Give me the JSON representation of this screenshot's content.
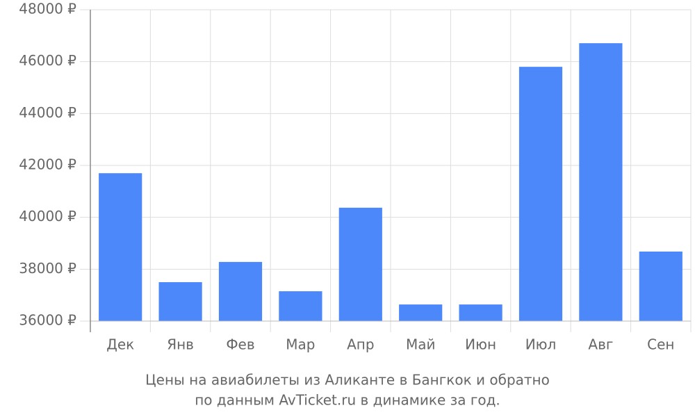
{
  "chart_data": {
    "type": "bar",
    "title": "Цены на авиабилеты из Аликанте в Бангкок и обратно",
    "subtitle": "по данным AvTicket.ru в динамике за год.",
    "categories": [
      "Дек",
      "Янв",
      "Фев",
      "Мар",
      "Апр",
      "Май",
      "Июн",
      "Июл",
      "Авг",
      "Сен"
    ],
    "values": [
      41700,
      37500,
      38280,
      37150,
      40370,
      36640,
      36640,
      45800,
      46710,
      38680
    ],
    "color": "#4d88fa",
    "ylim": [
      36000,
      48000
    ],
    "yticks": [
      {
        "value": 36000,
        "label": "36000 ₽"
      },
      {
        "value": 38000,
        "label": "38000 ₽"
      },
      {
        "value": 40000,
        "label": "40000 ₽"
      },
      {
        "value": 42000,
        "label": "42000 ₽"
      },
      {
        "value": 44000,
        "label": "44000 ₽"
      },
      {
        "value": 46000,
        "label": "46000 ₽"
      },
      {
        "value": 48000,
        "label": "48000 ₽"
      }
    ],
    "grid": true
  }
}
